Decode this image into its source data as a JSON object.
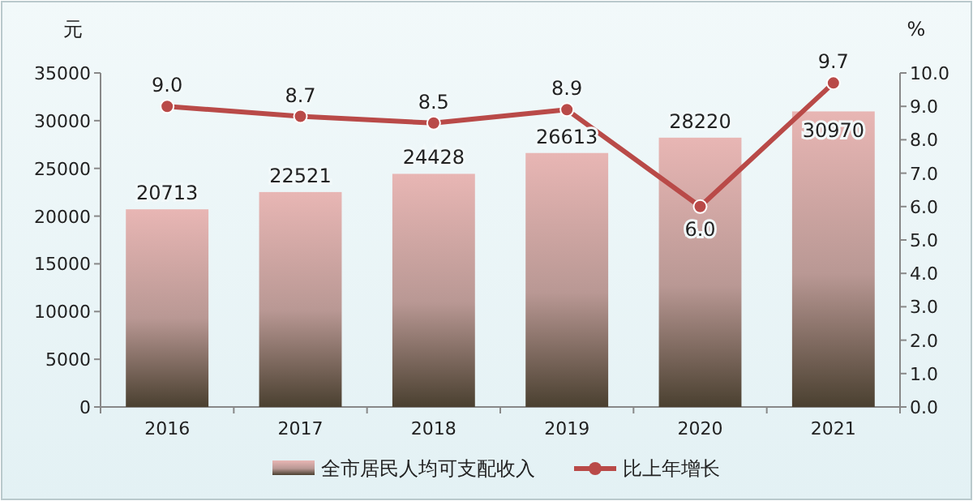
{
  "chart_data": {
    "type": "bar",
    "ylabel": "元",
    "y2label": "%",
    "categories": [
      "2016",
      "2017",
      "2018",
      "2019",
      "2020",
      "2021"
    ],
    "series": [
      {
        "name": "全市居民人均可支配收入",
        "color": "#e8b6b4",
        "values": [
          20713,
          22521,
          24428,
          26613,
          28220,
          30970
        ]
      },
      {
        "name": "比上年增长",
        "type": "line",
        "axis": "y2",
        "color": "#b94a48",
        "marker": "circle",
        "values": [
          9.0,
          8.7,
          8.5,
          8.9,
          6.0,
          9.7
        ],
        "value_labels": [
          "9.0",
          "8.7",
          "8.5",
          "8.9",
          "6.0",
          "9.7"
        ]
      }
    ],
    "ylim": [
      0,
      35000
    ],
    "yticks": [
      0,
      5000,
      10000,
      15000,
      20000,
      25000,
      30000,
      35000
    ],
    "y2lim": [
      0,
      10
    ],
    "y2ticks": [
      {
        "value": 0,
        "label": "0.0"
      },
      {
        "value": 1,
        "label": "1.0"
      },
      {
        "value": 2,
        "label": "2.0"
      },
      {
        "value": 3,
        "label": "3.0"
      },
      {
        "value": 4,
        "label": "4.0"
      },
      {
        "value": 5,
        "label": "5.0"
      },
      {
        "value": 6,
        "label": "6.0"
      },
      {
        "value": 7,
        "label": "7.0"
      },
      {
        "value": 8,
        "label": "8.0"
      },
      {
        "value": 9,
        "label": "9.0"
      },
      {
        "value": 10,
        "label": "10.0"
      }
    ],
    "data_labels": true,
    "legend": "bottom",
    "grid": false
  }
}
